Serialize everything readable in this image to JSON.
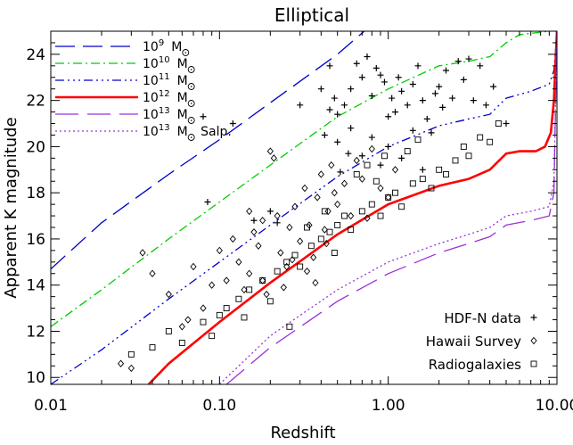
{
  "chart_data": {
    "type": "scatter",
    "title": "Elliptical",
    "xlabel": "Redshift",
    "ylabel": "Apparent K magnitude",
    "xscale": "log",
    "xlim": [
      0.01,
      10.0
    ],
    "ylim": [
      9.7,
      25.0
    ],
    "xticks": [
      {
        "v": 0.01,
        "label": "0.01"
      },
      {
        "v": 0.1,
        "label": "0.10"
      },
      {
        "v": 1.0,
        "label": "1.00"
      },
      {
        "v": 10.0,
        "label": "10.00"
      }
    ],
    "yticks": [
      {
        "v": 10,
        "label": "10"
      },
      {
        "v": 12,
        "label": "12"
      },
      {
        "v": 14,
        "label": "14"
      },
      {
        "v": 16,
        "label": "16"
      },
      {
        "v": 18,
        "label": "18"
      },
      {
        "v": 20,
        "label": "20"
      },
      {
        "v": 22,
        "label": "22"
      },
      {
        "v": 24,
        "label": "24"
      }
    ],
    "grid": false,
    "legend_top_placement": "top-left",
    "legend_bottom_placement": "bottom-right",
    "lines": [
      {
        "base": "10",
        "exp": "9",
        "unit": "M",
        "suffix": "",
        "color": "#0000cc",
        "dash": "22,9",
        "width": 1.3,
        "points": [
          [
            0.01,
            14.7
          ],
          [
            0.02,
            16.7
          ],
          [
            0.05,
            18.8
          ],
          [
            0.1,
            20.3
          ],
          [
            0.2,
            21.9
          ],
          [
            0.5,
            24.0
          ],
          [
            0.72,
            25.0
          ]
        ]
      },
      {
        "base": "10",
        "exp": "10",
        "unit": "M",
        "suffix": "",
        "color": "#00cc00",
        "dash": "10,4,2,4",
        "width": 1.3,
        "points": [
          [
            0.01,
            12.2
          ],
          [
            0.02,
            13.8
          ],
          [
            0.05,
            16.0
          ],
          [
            0.1,
            17.6
          ],
          [
            0.2,
            19.2
          ],
          [
            0.5,
            21.3
          ],
          [
            1.0,
            22.5
          ],
          [
            2.0,
            23.5
          ],
          [
            3.0,
            23.7
          ],
          [
            4.0,
            23.9
          ],
          [
            5.0,
            24.5
          ],
          [
            6.0,
            24.85
          ],
          [
            9.0,
            25.0
          ]
        ]
      },
      {
        "base": "10",
        "exp": "11",
        "unit": "M",
        "suffix": "",
        "color": "#0000cc",
        "dash": "10,4,2,4,2,4,2,4",
        "width": 1.3,
        "points": [
          [
            0.01,
            9.7
          ],
          [
            0.02,
            11.2
          ],
          [
            0.05,
            13.4
          ],
          [
            0.1,
            15.0
          ],
          [
            0.2,
            16.6
          ],
          [
            0.5,
            18.7
          ],
          [
            1.0,
            20.0
          ],
          [
            2.0,
            20.9
          ],
          [
            3.0,
            21.2
          ],
          [
            4.0,
            21.4
          ],
          [
            5.0,
            22.1
          ],
          [
            7.0,
            22.4
          ],
          [
            9.0,
            22.7
          ],
          [
            9.6,
            23.3
          ],
          [
            10.0,
            25.0
          ]
        ]
      },
      {
        "base": "10",
        "exp": "12",
        "unit": "M",
        "suffix": "",
        "color": "#ff0000",
        "dash": "",
        "width": 2.6,
        "points": [
          [
            0.038,
            9.7
          ],
          [
            0.05,
            10.6
          ],
          [
            0.1,
            12.4
          ],
          [
            0.2,
            14.1
          ],
          [
            0.5,
            16.2
          ],
          [
            1.0,
            17.5
          ],
          [
            2.0,
            18.3
          ],
          [
            3.0,
            18.6
          ],
          [
            4.0,
            19.0
          ],
          [
            5.0,
            19.7
          ],
          [
            6.0,
            19.8
          ],
          [
            7.5,
            19.8
          ],
          [
            8.5,
            20.0
          ],
          [
            9.2,
            20.6
          ],
          [
            9.6,
            22.0
          ],
          [
            9.85,
            24.0
          ],
          [
            10.0,
            25.0
          ]
        ]
      },
      {
        "base": "10",
        "exp": "13",
        "unit": "M",
        "suffix": "",
        "color": "#9b30d9",
        "dash": "26,10",
        "width": 1.3,
        "points": [
          [
            0.11,
            9.7
          ],
          [
            0.2,
            11.3
          ],
          [
            0.5,
            13.3
          ],
          [
            1.0,
            14.5
          ],
          [
            2.0,
            15.4
          ],
          [
            3.0,
            15.8
          ],
          [
            4.0,
            16.1
          ],
          [
            5.0,
            16.6
          ],
          [
            7.0,
            16.8
          ],
          [
            9.0,
            17.0
          ],
          [
            9.6,
            18.0
          ],
          [
            10.0,
            25.0
          ]
        ]
      },
      {
        "base": "10",
        "exp": "13",
        "unit": "M",
        "suffix": " Salp.",
        "color": "#9b30d9",
        "dash": "2,3",
        "width": 1.3,
        "points": [
          [
            0.1,
            9.7
          ],
          [
            0.2,
            11.8
          ],
          [
            0.5,
            13.8
          ],
          [
            1.0,
            15.0
          ],
          [
            2.0,
            15.8
          ],
          [
            3.0,
            16.2
          ],
          [
            4.0,
            16.5
          ],
          [
            5.0,
            17.0
          ],
          [
            7.0,
            17.2
          ],
          [
            9.0,
            17.4
          ],
          [
            9.6,
            18.5
          ],
          [
            10.0,
            25.0
          ]
        ]
      }
    ],
    "scatter_series": [
      {
        "name": "HDF-N data",
        "marker": "plus",
        "points": [
          [
            0.08,
            21.3
          ],
          [
            0.12,
            21.0
          ],
          [
            0.085,
            17.6
          ],
          [
            0.2,
            17.2
          ],
          [
            0.22,
            16.7
          ],
          [
            0.16,
            16.8
          ],
          [
            0.3,
            21.8
          ],
          [
            0.4,
            22.5
          ],
          [
            0.45,
            23.5
          ],
          [
            0.5,
            21.4
          ],
          [
            0.55,
            21.8
          ],
          [
            0.6,
            22.5
          ],
          [
            0.65,
            23.6
          ],
          [
            0.7,
            23.0
          ],
          [
            0.75,
            23.9
          ],
          [
            0.8,
            22.2
          ],
          [
            0.85,
            23.4
          ],
          [
            0.9,
            23.1
          ],
          [
            0.95,
            22.8
          ],
          [
            1.0,
            21.3
          ],
          [
            1.05,
            22.1
          ],
          [
            1.1,
            21.5
          ],
          [
            1.15,
            23.0
          ],
          [
            1.2,
            22.4
          ],
          [
            1.3,
            21.8
          ],
          [
            1.4,
            22.7
          ],
          [
            1.5,
            23.5
          ],
          [
            1.6,
            22.0
          ],
          [
            1.7,
            21.2
          ],
          [
            1.8,
            20.6
          ],
          [
            1.9,
            22.3
          ],
          [
            2.0,
            22.6
          ],
          [
            2.1,
            21.7
          ],
          [
            2.2,
            23.3
          ],
          [
            2.4,
            22.1
          ],
          [
            2.6,
            23.7
          ],
          [
            2.8,
            22.9
          ],
          [
            3.0,
            23.8
          ],
          [
            3.2,
            22.0
          ],
          [
            3.5,
            23.5
          ],
          [
            3.8,
            21.8
          ],
          [
            4.2,
            22.6
          ],
          [
            5.0,
            21.0
          ],
          [
            0.5,
            20.2
          ],
          [
            0.6,
            20.8
          ],
          [
            0.7,
            19.6
          ],
          [
            0.8,
            20.4
          ],
          [
            0.9,
            19.2
          ],
          [
            1.0,
            20.0
          ],
          [
            1.2,
            19.5
          ],
          [
            1.4,
            20.7
          ],
          [
            1.6,
            19.0
          ],
          [
            0.45,
            21.6
          ],
          [
            0.42,
            20.5
          ],
          [
            0.48,
            22.1
          ],
          [
            0.52,
            18.9
          ],
          [
            0.58,
            19.7
          ]
        ]
      },
      {
        "name": "Hawaii Survey",
        "marker": "diamond",
        "points": [
          [
            0.026,
            10.6
          ],
          [
            0.03,
            10.4
          ],
          [
            0.035,
            15.4
          ],
          [
            0.04,
            14.5
          ],
          [
            0.05,
            13.6
          ],
          [
            0.06,
            12.2
          ],
          [
            0.065,
            12.5
          ],
          [
            0.07,
            14.8
          ],
          [
            0.08,
            13.0
          ],
          [
            0.09,
            14.0
          ],
          [
            0.1,
            15.5
          ],
          [
            0.11,
            14.2
          ],
          [
            0.12,
            16.0
          ],
          [
            0.13,
            15.0
          ],
          [
            0.14,
            13.8
          ],
          [
            0.15,
            14.5
          ],
          [
            0.16,
            16.3
          ],
          [
            0.17,
            15.7
          ],
          [
            0.18,
            14.2
          ],
          [
            0.19,
            13.6
          ],
          [
            0.2,
            19.8
          ],
          [
            0.21,
            19.5
          ],
          [
            0.22,
            17.0
          ],
          [
            0.23,
            15.4
          ],
          [
            0.25,
            14.8
          ],
          [
            0.26,
            16.5
          ],
          [
            0.28,
            17.4
          ],
          [
            0.3,
            15.9
          ],
          [
            0.32,
            18.2
          ],
          [
            0.34,
            16.6
          ],
          [
            0.36,
            15.2
          ],
          [
            0.38,
            17.8
          ],
          [
            0.4,
            18.8
          ],
          [
            0.42,
            16.4
          ],
          [
            0.44,
            17.2
          ],
          [
            0.46,
            19.2
          ],
          [
            0.48,
            18.0
          ],
          [
            0.5,
            17.5
          ],
          [
            0.55,
            18.4
          ],
          [
            0.6,
            17.0
          ],
          [
            0.65,
            19.4
          ],
          [
            0.7,
            18.6
          ],
          [
            0.75,
            16.9
          ],
          [
            0.8,
            19.9
          ],
          [
            0.9,
            18.2
          ],
          [
            1.0,
            17.8
          ],
          [
            1.1,
            19.0
          ],
          [
            0.33,
            14.6
          ],
          [
            0.37,
            14.1
          ],
          [
            0.43,
            15.8
          ],
          [
            0.27,
            15.1
          ],
          [
            0.24,
            13.9
          ],
          [
            0.18,
            16.8
          ],
          [
            0.15,
            17.2
          ]
        ]
      },
      {
        "name": "Radiogalaxies",
        "marker": "square",
        "points": [
          [
            0.03,
            11.0
          ],
          [
            0.04,
            11.3
          ],
          [
            0.05,
            12.0
          ],
          [
            0.06,
            11.5
          ],
          [
            0.08,
            12.4
          ],
          [
            0.1,
            12.7
          ],
          [
            0.11,
            13.0
          ],
          [
            0.13,
            13.4
          ],
          [
            0.15,
            13.8
          ],
          [
            0.18,
            14.2
          ],
          [
            0.2,
            13.3
          ],
          [
            0.22,
            14.6
          ],
          [
            0.25,
            15.0
          ],
          [
            0.28,
            15.3
          ],
          [
            0.3,
            14.8
          ],
          [
            0.35,
            15.7
          ],
          [
            0.4,
            16.0
          ],
          [
            0.45,
            16.3
          ],
          [
            0.5,
            16.6
          ],
          [
            0.55,
            17.0
          ],
          [
            0.6,
            16.4
          ],
          [
            0.7,
            17.2
          ],
          [
            0.8,
            17.5
          ],
          [
            0.9,
            17.0
          ],
          [
            1.0,
            17.8
          ],
          [
            1.1,
            18.0
          ],
          [
            1.2,
            17.4
          ],
          [
            1.4,
            18.4
          ],
          [
            1.6,
            18.6
          ],
          [
            1.8,
            18.2
          ],
          [
            2.0,
            19.0
          ],
          [
            2.2,
            18.8
          ],
          [
            2.5,
            19.4
          ],
          [
            2.8,
            20.0
          ],
          [
            3.0,
            19.6
          ],
          [
            3.5,
            20.4
          ],
          [
            4.0,
            20.2
          ],
          [
            4.5,
            21.0
          ],
          [
            0.65,
            18.8
          ],
          [
            0.75,
            19.2
          ],
          [
            0.85,
            18.5
          ],
          [
            0.95,
            19.6
          ],
          [
            1.3,
            19.8
          ],
          [
            1.5,
            20.3
          ],
          [
            0.42,
            17.2
          ],
          [
            0.48,
            15.4
          ],
          [
            0.33,
            16.5
          ],
          [
            0.26,
            12.2
          ],
          [
            0.14,
            12.6
          ],
          [
            0.09,
            11.8
          ]
        ]
      }
    ]
  }
}
